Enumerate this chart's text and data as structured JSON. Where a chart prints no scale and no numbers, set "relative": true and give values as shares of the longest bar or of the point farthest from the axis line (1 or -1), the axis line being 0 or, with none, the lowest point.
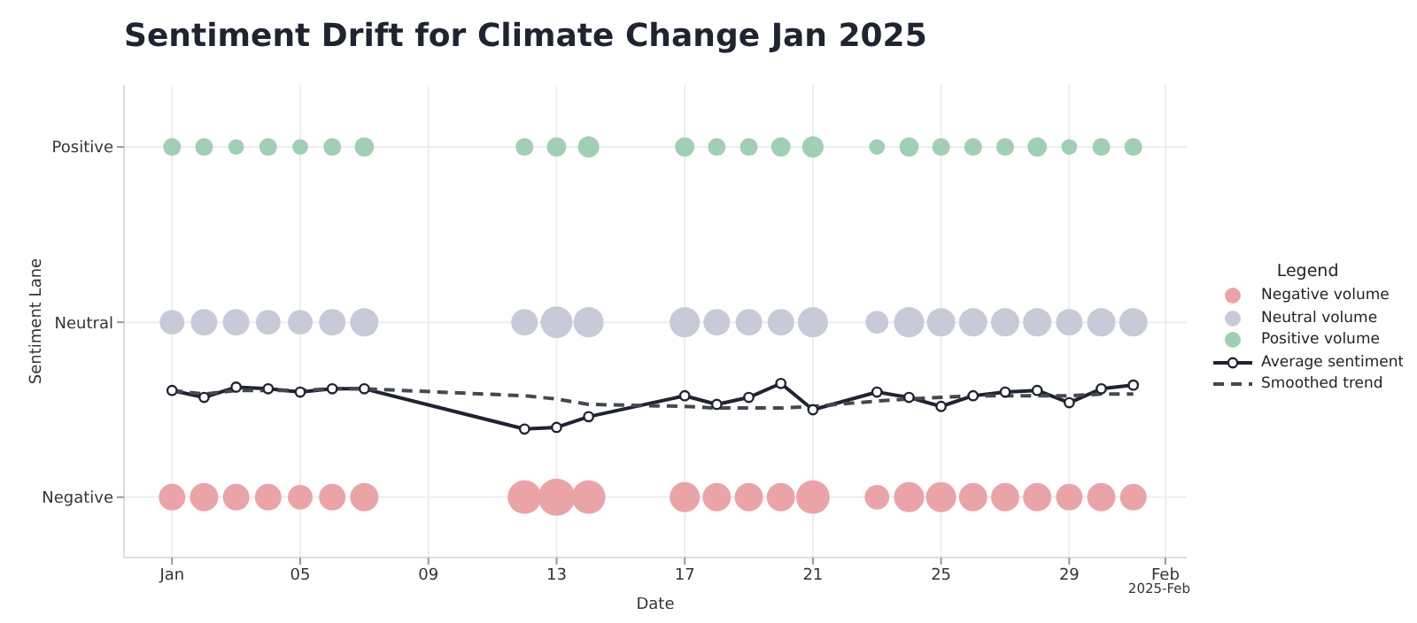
{
  "chart_data": {
    "type": "bubble",
    "relative": true,
    "title": "Sentiment Drift for Climate Change Jan 2025",
    "xlabel": "Date",
    "ylabel": "Sentiment Lane",
    "legend_title": "Legend",
    "legend": "right",
    "grid": true,
    "annotations": [
      "Negative",
      "Neutral",
      "Positive",
      "2025-Feb"
    ],
    "x": [
      "2025-01-01",
      "2025-01-02",
      "2025-01-03",
      "2025-01-04",
      "2025-01-05",
      "2025-01-06",
      "2025-01-07",
      "2025-01-12",
      "2025-01-13",
      "2025-01-14",
      "2025-01-17",
      "2025-01-18",
      "2025-01-19",
      "2025-01-20",
      "2025-01-21",
      "2025-01-23",
      "2025-01-24",
      "2025-01-25",
      "2025-01-26",
      "2025-01-27",
      "2025-01-28",
      "2025-01-29",
      "2025-01-30",
      "2025-01-31"
    ],
    "xlim": [
      "2024-12-30T12:00",
      "2025-02-01T16:00"
    ],
    "xticks": [
      {
        "value": "2025-01-01",
        "label": "Jan"
      },
      {
        "value": "2025-01-05",
        "label": "05"
      },
      {
        "value": "2025-01-09",
        "label": "09"
      },
      {
        "value": "2025-01-13",
        "label": "13"
      },
      {
        "value": "2025-01-17",
        "label": "17"
      },
      {
        "value": "2025-01-21",
        "label": "21"
      },
      {
        "value": "2025-01-25",
        "label": "25"
      },
      {
        "value": "2025-01-29",
        "label": "29"
      },
      {
        "value": "2025-02-01",
        "label": "Feb"
      }
    ],
    "series": [
      {
        "name": "Negative volume",
        "color": "#eaa4a8",
        "values": [
          0.147,
          0.147,
          0.147,
          0.147,
          0.147,
          0.147,
          0.147,
          0.147,
          0.147,
          0.147,
          0.147,
          0.147,
          0.147,
          0.147,
          0.147,
          0.147,
          0.147,
          0.147,
          0.147,
          0.147,
          0.147,
          0.147,
          0.147,
          0.147
        ],
        "sizes": [
          0.51,
          0.58,
          0.51,
          0.51,
          0.44,
          0.51,
          0.58,
          0.82,
          1,
          0.82,
          0.66,
          0.58,
          0.58,
          0.58,
          0.82,
          0.44,
          0.66,
          0.66,
          0.58,
          0.58,
          0.58,
          0.51,
          0.58,
          0.51
        ]
      },
      {
        "name": "Neutral volume",
        "color": "#c8cad9",
        "values": [
          0.573,
          0.573,
          0.573,
          0.573,
          0.573,
          0.573,
          0.573,
          0.573,
          0.573,
          0.573,
          0.573,
          0.573,
          0.573,
          0.573,
          0.573,
          0.573,
          0.573,
          0.573,
          0.573,
          0.573,
          0.573,
          0.573,
          0.573,
          0.573
        ],
        "sizes": [
          0.44,
          0.51,
          0.51,
          0.44,
          0.44,
          0.51,
          0.58,
          0.51,
          0.73,
          0.66,
          0.66,
          0.51,
          0.51,
          0.51,
          0.66,
          0.38,
          0.66,
          0.58,
          0.58,
          0.58,
          0.58,
          0.51,
          0.58,
          0.58
        ]
      },
      {
        "name": "Positive volume",
        "color": "#a0cfb5",
        "values": [
          1,
          1,
          1,
          1,
          1,
          1,
          1,
          1,
          1,
          1,
          1,
          1,
          1,
          1,
          1,
          1,
          1,
          1,
          1,
          1,
          1,
          1,
          1,
          1
        ],
        "sizes": [
          0.23,
          0.23,
          0.18,
          0.23,
          0.18,
          0.23,
          0.27,
          0.23,
          0.27,
          0.33,
          0.27,
          0.23,
          0.23,
          0.27,
          0.33,
          0.18,
          0.27,
          0.23,
          0.23,
          0.23,
          0.27,
          0.18,
          0.23,
          0.23
        ]
      },
      {
        "name": "Average sentiment",
        "type": "line",
        "color": "#1f2430",
        "marker": "circle",
        "line_style": "solid",
        "values": [
          0.407,
          0.39,
          0.415,
          0.411,
          0.403,
          0.411,
          0.411,
          0.313,
          0.317,
          0.343,
          0.394,
          0.373,
          0.39,
          0.424,
          0.36,
          0.403,
          0.39,
          0.368,
          0.394,
          0.403,
          0.407,
          0.377,
          0.411,
          0.42
        ]
      },
      {
        "name": "Smoothed trend",
        "type": "line",
        "color": "#45484f",
        "marker": "none",
        "line_style": "dashed",
        "values": [
          0.407,
          0.398,
          0.407,
          0.407,
          0.407,
          0.411,
          0.411,
          0.394,
          0.386,
          0.373,
          0.368,
          0.364,
          0.364,
          0.364,
          0.368,
          0.381,
          0.386,
          0.39,
          0.394,
          0.394,
          0.394,
          0.394,
          0.398,
          0.398
        ]
      }
    ]
  }
}
